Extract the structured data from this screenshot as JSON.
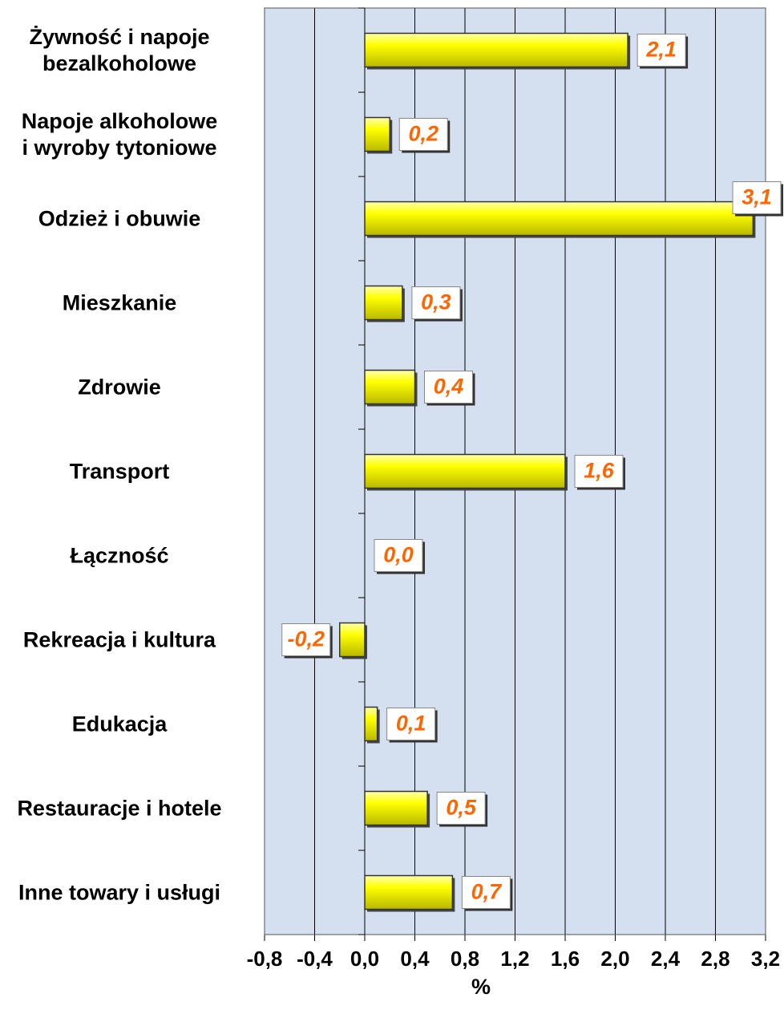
{
  "chart_data": {
    "type": "bar",
    "orientation": "horizontal",
    "categories": [
      "Żywność i napoje\nbezalkoholowe",
      "Napoje alkoholowe\ni wyroby tytoniowe",
      "Odzież i obuwie",
      "Mieszkanie",
      "Zdrowie",
      "Transport",
      "Łączność",
      "Rekreacja i kultura",
      "Edukacja",
      "Restauracje i hotele",
      "Inne towary i usługi"
    ],
    "values": [
      2.1,
      0.2,
      3.1,
      0.3,
      0.4,
      1.6,
      0.0,
      -0.2,
      0.1,
      0.5,
      0.7
    ],
    "value_labels": [
      "2,1",
      "0,2",
      "3,1",
      "0,3",
      "0,4",
      "1,6",
      "0,0",
      "-0,2",
      "0,1",
      "0,5",
      "0,7"
    ],
    "color": "#ffff00",
    "label_color": "#ff6600",
    "background": "#d4dff0",
    "xlabel": "%",
    "xlim": [
      -0.8,
      3.2
    ],
    "xticks": [
      {
        "value": -0.8,
        "label": "-0,8"
      },
      {
        "value": -0.4,
        "label": "-0,4"
      },
      {
        "value": 0,
        "label": "0,0"
      },
      {
        "value": 0.4,
        "label": "0,4"
      },
      {
        "value": 0.8,
        "label": "0,8"
      },
      {
        "value": 1.2,
        "label": "1,2"
      },
      {
        "value": 1.6,
        "label": "1,6"
      },
      {
        "value": 2.0,
        "label": "2,0"
      },
      {
        "value": 2.4,
        "label": "2,4"
      },
      {
        "value": 2.8,
        "label": "2,8"
      },
      {
        "value": 3.2,
        "label": "3,2"
      }
    ],
    "grid": true
  }
}
